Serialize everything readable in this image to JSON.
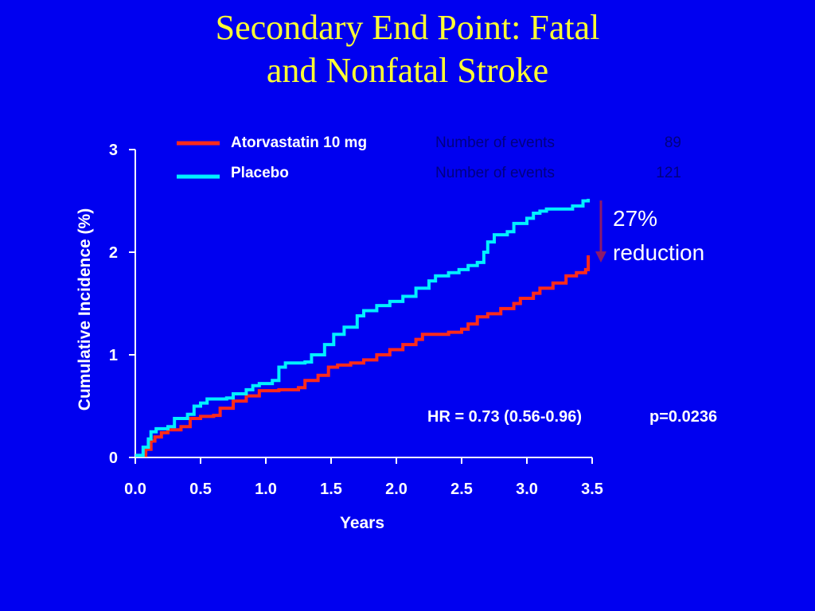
{
  "title": {
    "line1": "Secondary End Point: Fatal",
    "line2": "and Nonfatal Stroke"
  },
  "colors": {
    "background": "#0000f0",
    "title": "#ffff33",
    "atorvastatin": "#ff2a1a",
    "placebo": "#00f0ff",
    "arrow": "#8b1a6b",
    "axis": "#ffffff",
    "events_text": "#000080"
  },
  "legend": {
    "items": [
      {
        "label": "Atorvastatin 10 mg",
        "events_label": "Number of events",
        "events": "89"
      },
      {
        "label": "Placebo",
        "events_label": "Number of events",
        "events": "121"
      }
    ]
  },
  "annotations": {
    "reduction_line1": "27%",
    "reduction_line2": "reduction",
    "hr": "HR = 0.73 (0.56-0.96)",
    "p": "p=0.0236"
  },
  "chart_data": {
    "type": "line",
    "xlabel": "Years",
    "ylabel": "Cumulative Incidence (%)",
    "xlim": [
      0,
      3.5
    ],
    "ylim": [
      0,
      3
    ],
    "x_ticks": [
      "0.0",
      "0.5",
      "1.0",
      "1.5",
      "2.0",
      "2.5",
      "3.0",
      "3.5"
    ],
    "y_ticks": [
      "0",
      "1",
      "2",
      "3"
    ],
    "grid": false,
    "legend_position": "top",
    "series": [
      {
        "name": "Atorvastatin 10 mg",
        "color": "#ff2a1a",
        "points": [
          [
            0,
            0.02
          ],
          [
            0.06,
            0.02
          ],
          [
            0.08,
            0.08
          ],
          [
            0.12,
            0.16
          ],
          [
            0.15,
            0.2
          ],
          [
            0.2,
            0.24
          ],
          [
            0.25,
            0.27
          ],
          [
            0.35,
            0.3
          ],
          [
            0.42,
            0.38
          ],
          [
            0.5,
            0.4
          ],
          [
            0.6,
            0.41
          ],
          [
            0.65,
            0.48
          ],
          [
            0.75,
            0.55
          ],
          [
            0.85,
            0.6
          ],
          [
            0.95,
            0.65
          ],
          [
            1.1,
            0.66
          ],
          [
            1.25,
            0.68
          ],
          [
            1.3,
            0.75
          ],
          [
            1.4,
            0.8
          ],
          [
            1.48,
            0.88
          ],
          [
            1.55,
            0.9
          ],
          [
            1.65,
            0.92
          ],
          [
            1.75,
            0.95
          ],
          [
            1.85,
            1.0
          ],
          [
            1.95,
            1.05
          ],
          [
            2.05,
            1.1
          ],
          [
            2.15,
            1.15
          ],
          [
            2.2,
            1.2
          ],
          [
            2.4,
            1.22
          ],
          [
            2.5,
            1.25
          ],
          [
            2.55,
            1.3
          ],
          [
            2.62,
            1.37
          ],
          [
            2.7,
            1.4
          ],
          [
            2.8,
            1.45
          ],
          [
            2.9,
            1.5
          ],
          [
            2.95,
            1.55
          ],
          [
            3.05,
            1.6
          ],
          [
            3.1,
            1.65
          ],
          [
            3.2,
            1.7
          ],
          [
            3.3,
            1.77
          ],
          [
            3.38,
            1.8
          ],
          [
            3.45,
            1.83
          ],
          [
            3.47,
            1.97
          ]
        ]
      },
      {
        "name": "Placebo",
        "color": "#00f0ff",
        "points": [
          [
            0,
            0.02
          ],
          [
            0.04,
            0.02
          ],
          [
            0.06,
            0.1
          ],
          [
            0.1,
            0.18
          ],
          [
            0.12,
            0.25
          ],
          [
            0.16,
            0.28
          ],
          [
            0.25,
            0.3
          ],
          [
            0.3,
            0.38
          ],
          [
            0.4,
            0.42
          ],
          [
            0.45,
            0.5
          ],
          [
            0.5,
            0.53
          ],
          [
            0.55,
            0.57
          ],
          [
            0.7,
            0.58
          ],
          [
            0.75,
            0.62
          ],
          [
            0.85,
            0.66
          ],
          [
            0.9,
            0.7
          ],
          [
            0.95,
            0.72
          ],
          [
            1.05,
            0.75
          ],
          [
            1.1,
            0.88
          ],
          [
            1.15,
            0.92
          ],
          [
            1.3,
            0.93
          ],
          [
            1.35,
            1.0
          ],
          [
            1.45,
            1.1
          ],
          [
            1.52,
            1.2
          ],
          [
            1.6,
            1.27
          ],
          [
            1.7,
            1.38
          ],
          [
            1.75,
            1.43
          ],
          [
            1.85,
            1.48
          ],
          [
            1.95,
            1.52
          ],
          [
            2.05,
            1.57
          ],
          [
            2.15,
            1.65
          ],
          [
            2.25,
            1.72
          ],
          [
            2.3,
            1.77
          ],
          [
            2.4,
            1.8
          ],
          [
            2.48,
            1.83
          ],
          [
            2.55,
            1.87
          ],
          [
            2.62,
            1.9
          ],
          [
            2.67,
            2.0
          ],
          [
            2.7,
            2.1
          ],
          [
            2.75,
            2.17
          ],
          [
            2.85,
            2.2
          ],
          [
            2.9,
            2.28
          ],
          [
            3.0,
            2.33
          ],
          [
            3.05,
            2.38
          ],
          [
            3.1,
            2.4
          ],
          [
            3.15,
            2.42
          ],
          [
            3.3,
            2.42
          ],
          [
            3.35,
            2.45
          ],
          [
            3.4,
            2.45
          ],
          [
            3.43,
            2.5
          ],
          [
            3.47,
            2.52
          ]
        ]
      }
    ]
  }
}
